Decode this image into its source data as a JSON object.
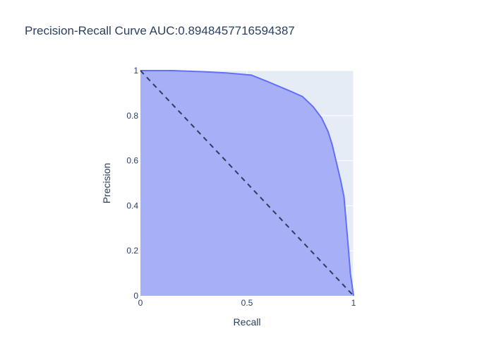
{
  "chart_data": {
    "type": "area",
    "title": "Precision-Recall Curve AUC:0.8948457716594387",
    "xlabel": "Recall",
    "ylabel": "Precision",
    "xlim": [
      0,
      1
    ],
    "ylim": [
      0,
      1
    ],
    "x_ticks": [
      "0",
      "0.5",
      "1"
    ],
    "y_ticks": [
      "0",
      "0.2",
      "0.4",
      "0.6",
      "0.8",
      "1"
    ],
    "grid": true,
    "series": [
      {
        "x": [
          0,
          0.15,
          0.3,
          0.4,
          0.52,
          0.6,
          0.7,
          0.76,
          0.81,
          0.85,
          0.88,
          0.9,
          0.92,
          0.94,
          0.955,
          0.965,
          0.975,
          0.985,
          1.0
        ],
        "y": [
          1.0,
          1.0,
          0.995,
          0.99,
          0.98,
          0.95,
          0.91,
          0.885,
          0.84,
          0.79,
          0.73,
          0.67,
          0.59,
          0.51,
          0.44,
          0.33,
          0.22,
          0.1,
          0.0
        ]
      },
      {
        "x": [
          0,
          1
        ],
        "y": [
          1,
          0
        ],
        "style": "dashed"
      }
    ],
    "colors": {
      "fill": "#a3adf7",
      "line": "#636efa",
      "diagonal": "#2a3f5f",
      "plot_bg": "#e5ecf6",
      "grid": "#ffffff"
    }
  }
}
